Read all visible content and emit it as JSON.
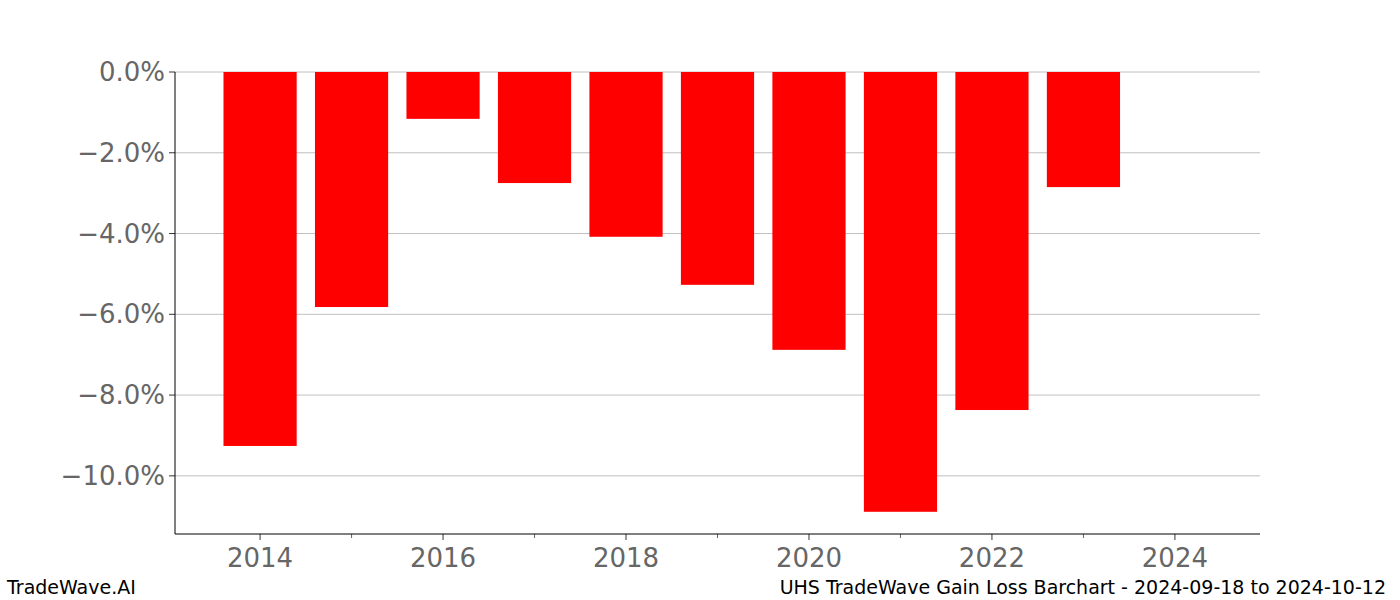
{
  "chart_data": {
    "type": "bar",
    "title": "UHS TradeWave Gain Loss Barchart - 2024-09-18 to 2024-10-12",
    "annotations": [
      "TradeWave.AI"
    ],
    "x": [
      2014,
      2015,
      2016,
      2017,
      2018,
      2019,
      2020,
      2021,
      2022,
      2023
    ],
    "values": [
      -9.26,
      -5.82,
      -1.16,
      -2.75,
      -4.08,
      -5.27,
      -6.88,
      -10.89,
      -8.37,
      -2.85
    ],
    "color": "#ff0000",
    "xlim": [
      2013.07,
      2024.93
    ],
    "xticks": [
      2014,
      2016,
      2018,
      2020,
      2022,
      2024
    ],
    "ylim": [
      -11.44,
      0
    ],
    "yticks": [
      {
        "value": 0,
        "label": "0.0%"
      },
      {
        "value": -2,
        "label": "−2.0%"
      },
      {
        "value": -4,
        "label": "−4.0%"
      },
      {
        "value": -6,
        "label": "−6.0%"
      },
      {
        "value": -8,
        "label": "−8.0%"
      },
      {
        "value": -10,
        "label": "−10.0%"
      }
    ],
    "grid": true
  }
}
